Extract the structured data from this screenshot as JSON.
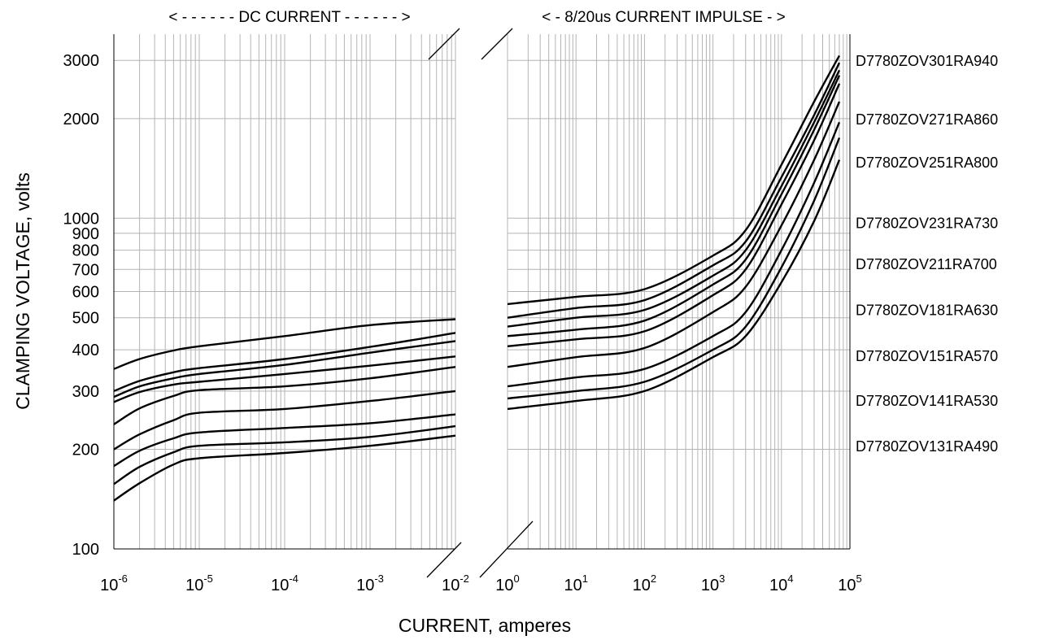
{
  "chart_data": {
    "type": "line",
    "ylabel": "CLAMPING VOLTAGE, volts",
    "xlabel": "CURRENT, amperes",
    "y_scale": "log",
    "ylim": [
      100,
      3600
    ],
    "y_ticks": [
      "100",
      "200",
      "300",
      "400",
      "500",
      "600",
      "700",
      "800",
      "900",
      "1000",
      "2000",
      "3000"
    ],
    "grid": true,
    "sections": [
      {
        "title": "< - - - - - - DC CURRENT - - - - - - >",
        "x_scale": "log",
        "xlim": [
          1e-06,
          0.01
        ],
        "x_ticks": [
          {
            "base": "10",
            "exp": "-6"
          },
          {
            "base": "10",
            "exp": "-5"
          },
          {
            "base": "10",
            "exp": "-4"
          },
          {
            "base": "10",
            "exp": "-3"
          },
          {
            "base": "10",
            "exp": "-2"
          }
        ]
      },
      {
        "title": "< - 8/20us CURRENT IMPULSE - >",
        "x_scale": "log",
        "xlim": [
          1,
          100000
        ],
        "x_ticks": [
          {
            "base": "10",
            "exp": "0"
          },
          {
            "base": "10",
            "exp": "1"
          },
          {
            "base": "10",
            "exp": "2"
          },
          {
            "base": "10",
            "exp": "3"
          },
          {
            "base": "10",
            "exp": "4"
          },
          {
            "base": "10",
            "exp": "5"
          }
        ]
      }
    ],
    "x_dc": [
      1e-06,
      2e-06,
      5e-06,
      1e-05,
      0.0001,
      0.001,
      0.01
    ],
    "x_impulse": [
      1,
      10,
      100,
      1000,
      3000,
      10000,
      30000,
      70000
    ],
    "series": [
      {
        "name": "D7780ZOV301RA940",
        "dc": [
          350,
          375,
          398,
          410,
          440,
          475,
          495
        ],
        "impulse": [
          550,
          578,
          610,
          770,
          920,
          1450,
          2250,
          3100
        ]
      },
      {
        "name": "D7780ZOV271RA860",
        "dc": [
          300,
          322,
          342,
          352,
          375,
          408,
          450
        ],
        "impulse": [
          500,
          535,
          565,
          720,
          850,
          1330,
          2050,
          2950
        ]
      },
      {
        "name": "D7780ZOV251RA800",
        "dc": [
          288,
          310,
          328,
          338,
          360,
          392,
          425
        ],
        "impulse": [
          470,
          500,
          528,
          670,
          800,
          1250,
          1950,
          2800
        ]
      },
      {
        "name": "D7780ZOV231RA730",
        "dc": [
          278,
          298,
          314,
          320,
          338,
          358,
          382
        ],
        "impulse": [
          440,
          460,
          490,
          630,
          750,
          1180,
          1850,
          2700
        ]
      },
      {
        "name": "D7780ZOV211RA700",
        "dc": [
          238,
          266,
          290,
          302,
          310,
          328,
          355
        ],
        "impulse": [
          410,
          430,
          455,
          585,
          700,
          1100,
          1720,
          2550
        ]
      },
      {
        "name": "D7780ZOV181RA630",
        "dc": [
          200,
          222,
          245,
          258,
          265,
          280,
          300
        ],
        "impulse": [
          355,
          380,
          405,
          520,
          620,
          950,
          1500,
          2250
        ]
      },
      {
        "name": "D7780ZOV151RA570",
        "dc": [
          178,
          198,
          216,
          225,
          232,
          240,
          255
        ],
        "impulse": [
          310,
          330,
          350,
          440,
          520,
          800,
          1280,
          1950
        ]
      },
      {
        "name": "D7780ZOV141RA530",
        "dc": [
          157,
          177,
          196,
          205,
          210,
          218,
          235
        ],
        "impulse": [
          285,
          300,
          320,
          400,
          470,
          710,
          1130,
          1750
        ]
      },
      {
        "name": "D7780ZOV131RA490",
        "dc": [
          140,
          158,
          180,
          188,
          195,
          205,
          220
        ],
        "impulse": [
          265,
          280,
          300,
          380,
          440,
          640,
          980,
          1500
        ]
      }
    ],
    "label_values": [
      3000,
      2000,
      1480,
      970,
      730,
      530,
      385,
      282,
      205
    ]
  }
}
